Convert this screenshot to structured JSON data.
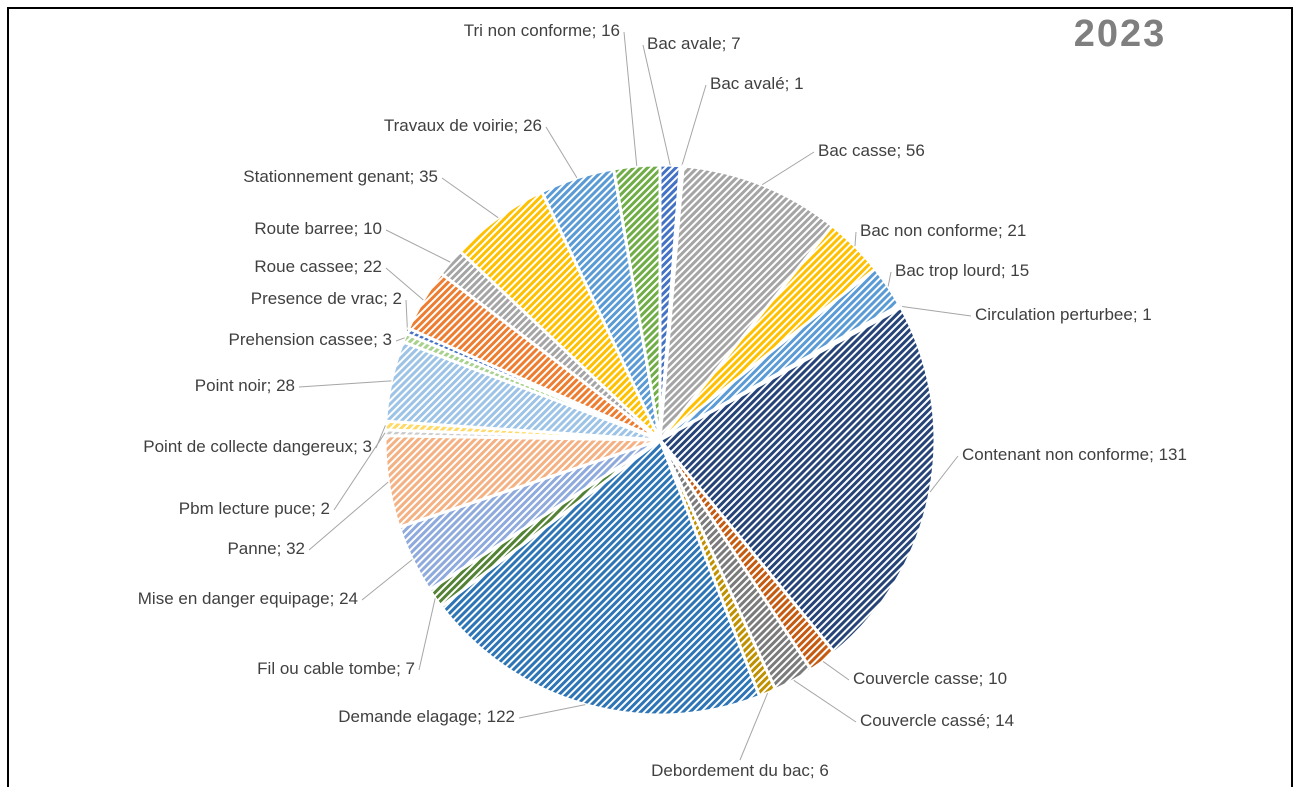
{
  "chart_data": {
    "type": "pie",
    "title": "2023",
    "categories": [
      "Bac avale",
      "Bac avalé",
      "Bac casse",
      "Bac non conforme",
      "Bac trop lourd",
      "Circulation perturbee",
      "Contenant non conforme",
      "Couvercle casse",
      "Couvercle cassé",
      "Debordement du bac",
      "Demande elagage",
      "Fil ou cable tombe",
      "Mise en danger equipage",
      "Panne",
      "Pbm lecture puce",
      "Point de collecte dangereux",
      "Point noir",
      "Prehension cassee",
      "Presence de vrac",
      "Roue cassee",
      "Route barree",
      "Stationnement genant",
      "Travaux de voirie",
      "Tri non conforme"
    ],
    "values": [
      7,
      1,
      56,
      21,
      15,
      1,
      131,
      10,
      14,
      6,
      122,
      7,
      24,
      32,
      2,
      3,
      28,
      3,
      2,
      22,
      10,
      35,
      26,
      16
    ],
    "colors": [
      "#4472c4",
      "#ed7d31",
      "#a5a5a5",
      "#ffc000",
      "#5b9bd5",
      "#70ad47",
      "#264478",
      "#c55a11",
      "#7b7b7b",
      "#bf9000",
      "#2e75b6",
      "#548235",
      "#8faadc",
      "#f4b183",
      "#c9c9c9",
      "#ffd966",
      "#9dc3e6",
      "#a9d18e",
      "#4472c4",
      "#ed7d31",
      "#a5a5a5",
      "#ffc000",
      "#5b9bd5",
      "#70ad47"
    ]
  }
}
